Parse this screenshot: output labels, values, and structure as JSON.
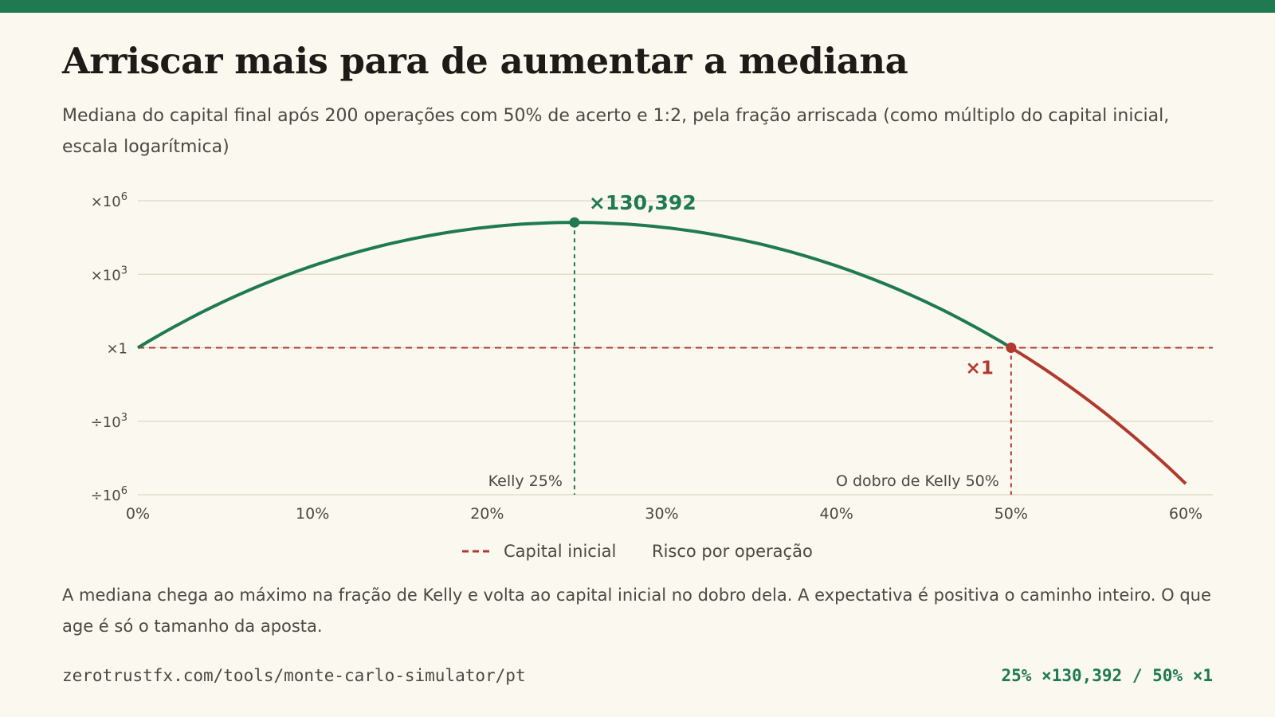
{
  "colors": {
    "accent": "#1f7a51",
    "danger": "#b03a2e",
    "text": "#1d1a17",
    "muted": "#4c4843",
    "grid": "#ddd8c4",
    "background": "#fbf8ef"
  },
  "title": "Arriscar mais para de aumentar a mediana",
  "subtitle": "Mediana do capital final após 200 operações com 50% de acerto e 1:2, pela fração arriscada (como múltiplo do capital inicial, escala logarítmica)",
  "note": "A mediana chega ao máximo na fração de Kelly e volta ao capital inicial no dobro dela. A expectativa é positiva o caminho inteiro. O que age é só o tamanho da aposta.",
  "footer": {
    "url": "zerotrustfx.com/tools/monte-carlo-simulator/pt",
    "stats": "25% ×130,392 / 50% ×1"
  },
  "chart_data": {
    "type": "line",
    "trades": 200,
    "win_rate": 0.5,
    "payoff_ratio": 2,
    "x_unit": "percent",
    "xlim": [
      0,
      60
    ],
    "x_ticks": [
      0,
      10,
      20,
      30,
      40,
      50,
      60
    ],
    "x_tick_labels": [
      "0%",
      "10%",
      "20%",
      "30%",
      "40%",
      "50%",
      "60%"
    ],
    "y_scale": "log10",
    "ylim": [
      -6,
      6
    ],
    "y_ticks": [
      6,
      3,
      0,
      -3,
      -6
    ],
    "y_tick_labels": [
      {
        "prefix": "×10",
        "sup": "6"
      },
      {
        "prefix": "×10",
        "sup": "3"
      },
      {
        "prefix": "×1",
        "sup": ""
      },
      {
        "prefix": "÷10",
        "sup": "3"
      },
      {
        "prefix": "÷10",
        "sup": "6"
      }
    ],
    "grid": true,
    "reference_line": {
      "name": "Capital inicial",
      "y": 1
    },
    "series": [
      {
        "name": "Risco por operação",
        "x_from": 0,
        "x_to": 60,
        "x_step": 0.5,
        "split_at": 50
      }
    ],
    "markers": [
      {
        "x": 25,
        "label": "Kelly 25%",
        "value_label": "×130,392",
        "color": "accent"
      },
      {
        "x": 50,
        "label": "O dobro de Kelly 50%",
        "value_label": "×1",
        "color": "danger"
      }
    ],
    "legend": {
      "position": "bottom-center",
      "items": [
        "Capital inicial",
        "Risco por operação"
      ]
    }
  }
}
